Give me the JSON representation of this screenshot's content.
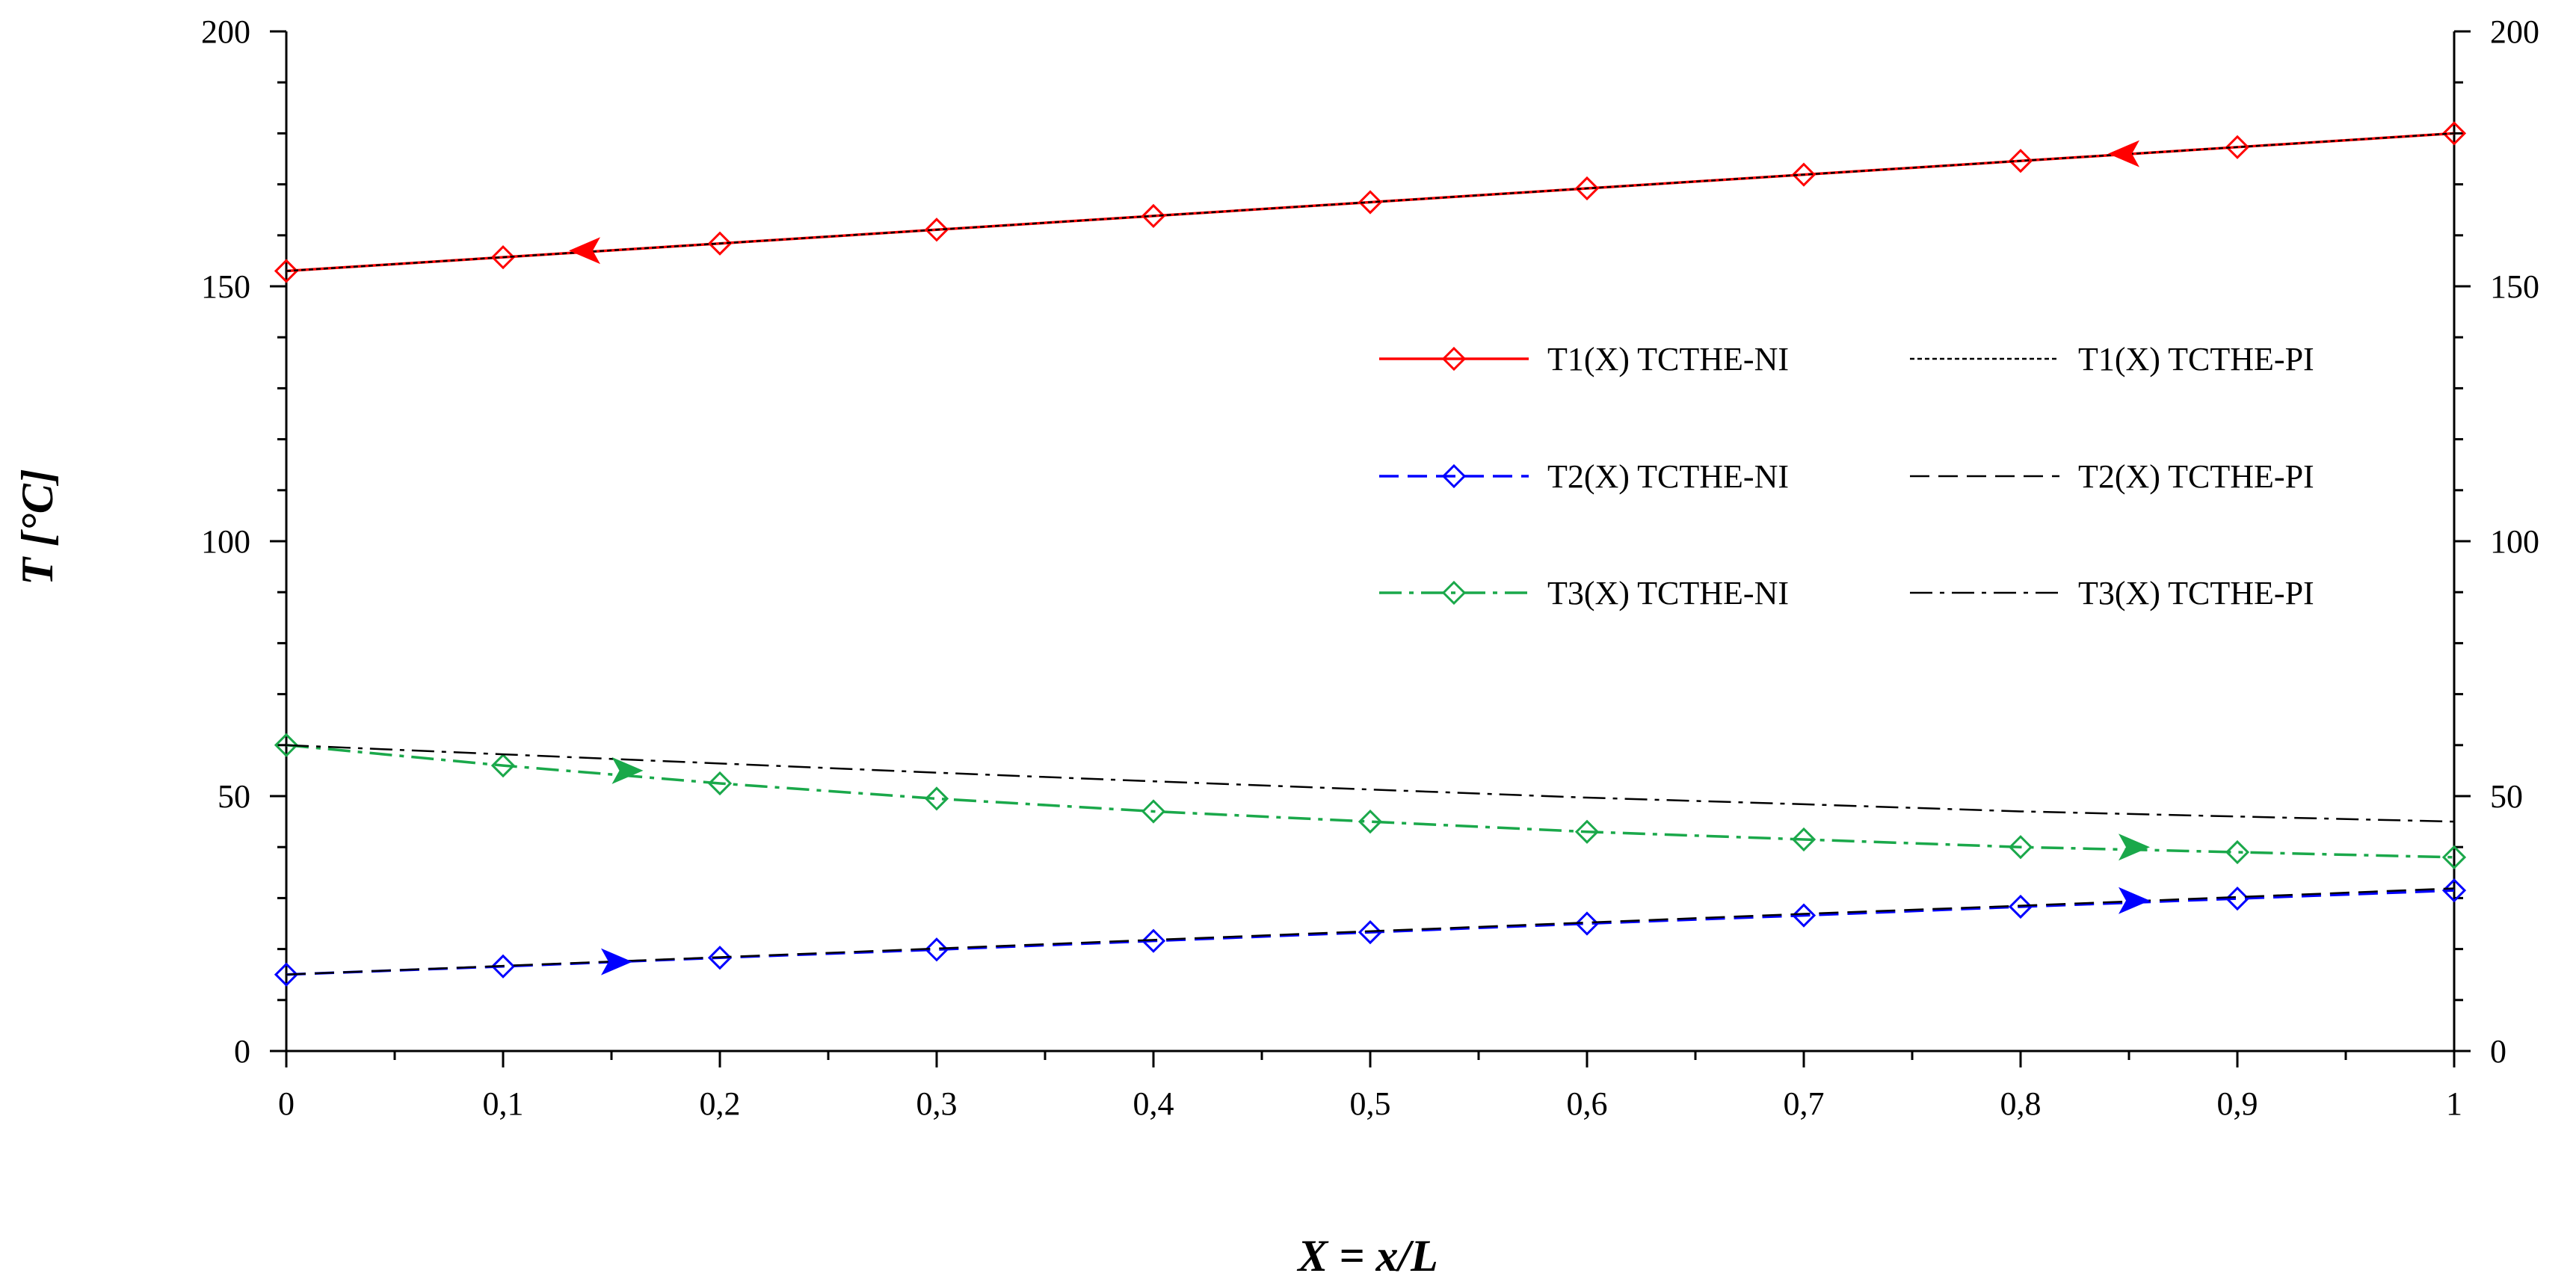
{
  "chart_data": {
    "type": "line",
    "title": "",
    "xlabel": "X = x/L",
    "ylabel": "T [°C]",
    "xlim": [
      0,
      1
    ],
    "ylim": [
      0,
      200
    ],
    "x_ticks": [
      0,
      0.1,
      0.2,
      0.3,
      0.4,
      0.5,
      0.6,
      0.7,
      0.8,
      0.9,
      1
    ],
    "x_tick_labels": [
      "0",
      "0,1",
      "0,2",
      "0,3",
      "0,4",
      "0,5",
      "0,6",
      "0,7",
      "0,8",
      "0,9",
      "1"
    ],
    "y_ticks": [
      0,
      50,
      100,
      150,
      200
    ],
    "y_tick_labels": [
      "0",
      "50",
      "100",
      "150",
      "200"
    ],
    "x": [
      0,
      0.1,
      0.2,
      0.3,
      0.4,
      0.5,
      0.6,
      0.7,
      0.8,
      0.9,
      1
    ],
    "grid": false,
    "legend_position": "center-right",
    "series": [
      {
        "name": "T1(X) TCTHE-NI",
        "color": "#ff0000",
        "dash": "solid",
        "marker": "diamond",
        "values": [
          153,
          155.7,
          158.4,
          161.1,
          163.8,
          166.5,
          169.2,
          171.9,
          174.6,
          177.3,
          180
        ]
      },
      {
        "name": "T1(X) TCTHE-PI",
        "color": "#000000",
        "dash": "dotted",
        "marker": "none",
        "values": [
          153,
          155.7,
          158.4,
          161.1,
          163.8,
          166.5,
          169.2,
          171.9,
          174.6,
          177.3,
          180
        ]
      },
      {
        "name": "T2(X) TCTHE-NI",
        "color": "#0000ff",
        "dash": "dashed",
        "marker": "diamond",
        "values": [
          15,
          16.6,
          18.3,
          19.9,
          21.6,
          23.3,
          25,
          26.6,
          28.3,
          29.9,
          31.5
        ]
      },
      {
        "name": "T2(X) TCTHE-PI",
        "color": "#000000",
        "dash": "dashed",
        "marker": "none",
        "values": [
          15,
          16.7,
          18.4,
          20.1,
          21.8,
          23.5,
          25.2,
          26.9,
          28.5,
          30.2,
          31.9
        ]
      },
      {
        "name": "T3(X) TCTHE-NI",
        "color": "#1aa84a",
        "dash": "dashdot",
        "marker": "diamond",
        "values": [
          60,
          56,
          52.5,
          49.5,
          47,
          45,
          43,
          41.5,
          40,
          39,
          38
        ]
      },
      {
        "name": "T3(X) TCTHE-PI",
        "color": "#000000",
        "dash": "dashdot",
        "marker": "none",
        "values": [
          60,
          58.2,
          56.4,
          54.6,
          52.9,
          51.3,
          49.7,
          48.4,
          47,
          46,
          45
        ]
      }
    ],
    "annotations": [
      {
        "type": "flow-arrow",
        "series": "T1(X) TCTHE-NI",
        "x": 0.14,
        "y": 157,
        "direction": "left",
        "color": "#ff0000"
      },
      {
        "type": "flow-arrow",
        "series": "T1(X) TCTHE-NI",
        "x": 0.85,
        "y": 176,
        "direction": "left",
        "color": "#ff0000"
      },
      {
        "type": "flow-arrow",
        "series": "T2(X) TCTHE-NI",
        "x": 0.15,
        "y": 17.5,
        "direction": "right",
        "color": "#0000ff"
      },
      {
        "type": "flow-arrow",
        "series": "T2(X) TCTHE-NI",
        "x": 0.85,
        "y": 29.5,
        "direction": "right",
        "color": "#0000ff"
      },
      {
        "type": "flow-arrow",
        "series": "T3(X) TCTHE-NI",
        "x": 0.155,
        "y": 55,
        "direction": "right",
        "color": "#1aa84a"
      },
      {
        "type": "flow-arrow",
        "series": "T3(X) TCTHE-NI",
        "x": 0.85,
        "y": 40,
        "direction": "right",
        "color": "#1aa84a"
      }
    ]
  }
}
